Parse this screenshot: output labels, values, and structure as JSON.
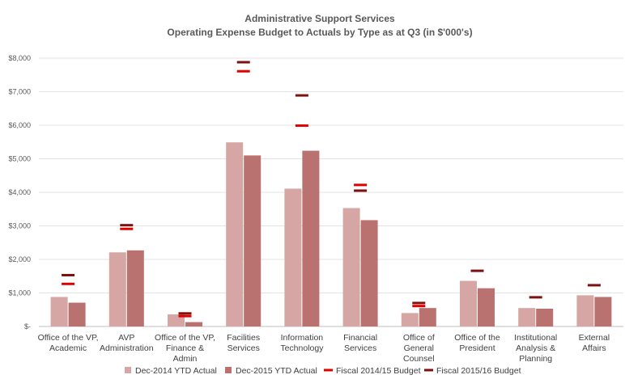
{
  "chart_data": {
    "type": "bar",
    "title": "Administrative Support Services",
    "subtitle": "Operating Expense Budget to Actuals by Type as at Q3 (in $'000's)",
    "categories": [
      [
        "Office of the VP,",
        "Academic"
      ],
      [
        "AVP",
        "Administration"
      ],
      [
        "Office of the VP,",
        "Finance &",
        "Admin"
      ],
      [
        "Facilities",
        "Services"
      ],
      [
        "Information",
        "Technology"
      ],
      [
        "Financial",
        "Services"
      ],
      [
        "Office of",
        "General",
        "Counsel"
      ],
      [
        "Office of the",
        "President"
      ],
      [
        "Institutional",
        "Analysis &",
        "Planning"
      ],
      [
        "External",
        "Affairs"
      ]
    ],
    "series": [
      {
        "name": "Dec-2014 YTD Actual",
        "kind": "bar",
        "color": "#d5a6a3",
        "values": [
          880,
          2210,
          360,
          5490,
          4110,
          3530,
          400,
          1360,
          550,
          930
        ]
      },
      {
        "name": "Dec-2015 YTD Actual",
        "kind": "bar",
        "color": "#b9726f",
        "values": [
          710,
          2270,
          130,
          5100,
          5240,
          3170,
          550,
          1140,
          530,
          880
        ]
      },
      {
        "name": "Fiscal 2014/15  Budget",
        "kind": "marker",
        "color": "#e00000",
        "values": [
          1270,
          2910,
          310,
          7610,
          5990,
          4220,
          610,
          null,
          null,
          null
        ]
      },
      {
        "name": "Fiscal 2015/16 Budget",
        "kind": "marker",
        "color": "#7f1010",
        "values": [
          1530,
          3020,
          390,
          7880,
          6890,
          4050,
          700,
          1660,
          870,
          1230
        ]
      }
    ],
    "yticks": [
      "$-",
      "$1,000",
      "$2,000",
      "$3,000",
      "$4,000",
      "$5,000",
      "$6,000",
      "$7,000",
      "$8,000"
    ],
    "ylim": [
      0,
      8000
    ],
    "grid": true,
    "legend": "bottom"
  }
}
